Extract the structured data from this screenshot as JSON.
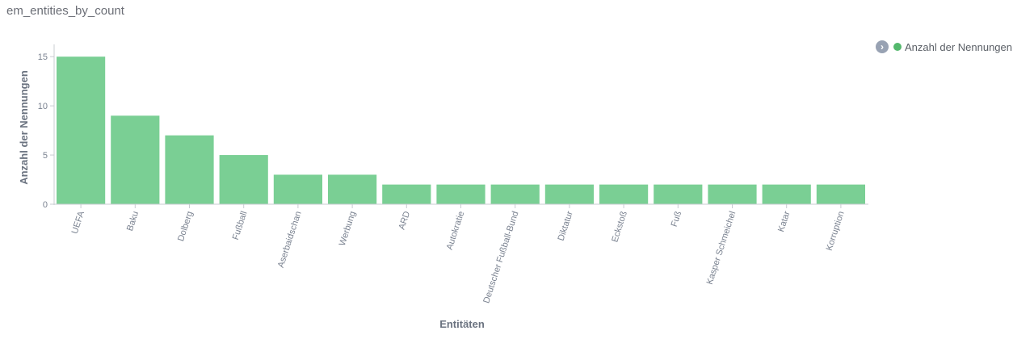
{
  "panel": {
    "title": "em_entities_by_count"
  },
  "legend": {
    "toggle_glyph": "›",
    "toggle_icon": "chevron-right-icon"
  },
  "colors": {
    "bar": "#7acf94",
    "legend_dot": "#54b86d",
    "axis": "#c9ccd2",
    "text": "#6b7380"
  },
  "chart_data": {
    "type": "bar",
    "xlabel": "Entitäten",
    "ylabel": "Anzahl der Nennungen",
    "categories": [
      "UEFA",
      "Baku",
      "Dolberg",
      "Fußball",
      "Aserbaidschan",
      "Werbung",
      "ARD",
      "Autokratie",
      "Deutscher Fußball-Bund",
      "Diktatur",
      "Eckstoß",
      "Fuß",
      "Kasper Schmeichel",
      "Katar",
      "Korruption"
    ],
    "series": [
      {
        "name": "Anzahl der Nennungen",
        "values": [
          15,
          9,
          7,
          5,
          3,
          3,
          2,
          2,
          2,
          2,
          2,
          2,
          2,
          2,
          2
        ]
      }
    ],
    "ylim": [
      0,
      16
    ],
    "yticks": [
      0,
      5,
      10,
      15
    ],
    "grid": false,
    "legend_position": "top-right"
  }
}
